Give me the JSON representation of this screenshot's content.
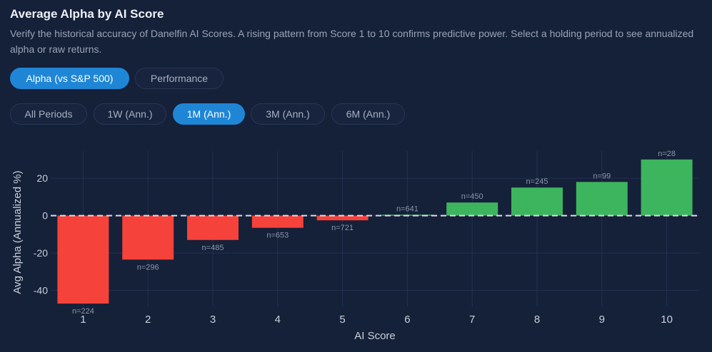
{
  "header": {
    "title": "Average Alpha by AI Score",
    "subtitle": "Verify the historical accuracy of Danelfin AI Scores. A rising pattern from Score 1 to 10 confirms predictive power. Select a holding period to see annualized alpha or raw returns."
  },
  "metric_tabs": [
    {
      "label": "Alpha (vs S&P 500)",
      "active": true
    },
    {
      "label": "Performance",
      "active": false
    }
  ],
  "period_tabs": [
    {
      "label": "All Periods",
      "active": false
    },
    {
      "label": "1W (Ann.)",
      "active": false
    },
    {
      "label": "1M (Ann.)",
      "active": true
    },
    {
      "label": "3M (Ann.)",
      "active": false
    },
    {
      "label": "6M (Ann.)",
      "active": false
    }
  ],
  "colors": {
    "background": "#152039",
    "negative": "#f5423a",
    "positive": "#3db55e",
    "accent": "#1f86d6",
    "grid": "#243150"
  },
  "chart_data": {
    "type": "bar",
    "title": "",
    "xlabel": "AI Score",
    "ylabel": "Avg Alpha (Annualized %)",
    "categories": [
      "1",
      "2",
      "3",
      "4",
      "5",
      "6",
      "7",
      "8",
      "9",
      "10"
    ],
    "values": [
      -47,
      -23.5,
      -13,
      -6.5,
      -2.5,
      0.5,
      7,
      15,
      18,
      30
    ],
    "annotations": [
      "n=224",
      "n=296",
      "n=485",
      "n=653",
      "n=721",
      "n=641",
      "n=450",
      "n=245",
      "n=99",
      "n=28"
    ],
    "yticks": [
      20,
      0,
      -20,
      -40
    ],
    "ylim": [
      -48.5,
      34.5
    ],
    "grid": true,
    "zero_line": "dashed"
  }
}
